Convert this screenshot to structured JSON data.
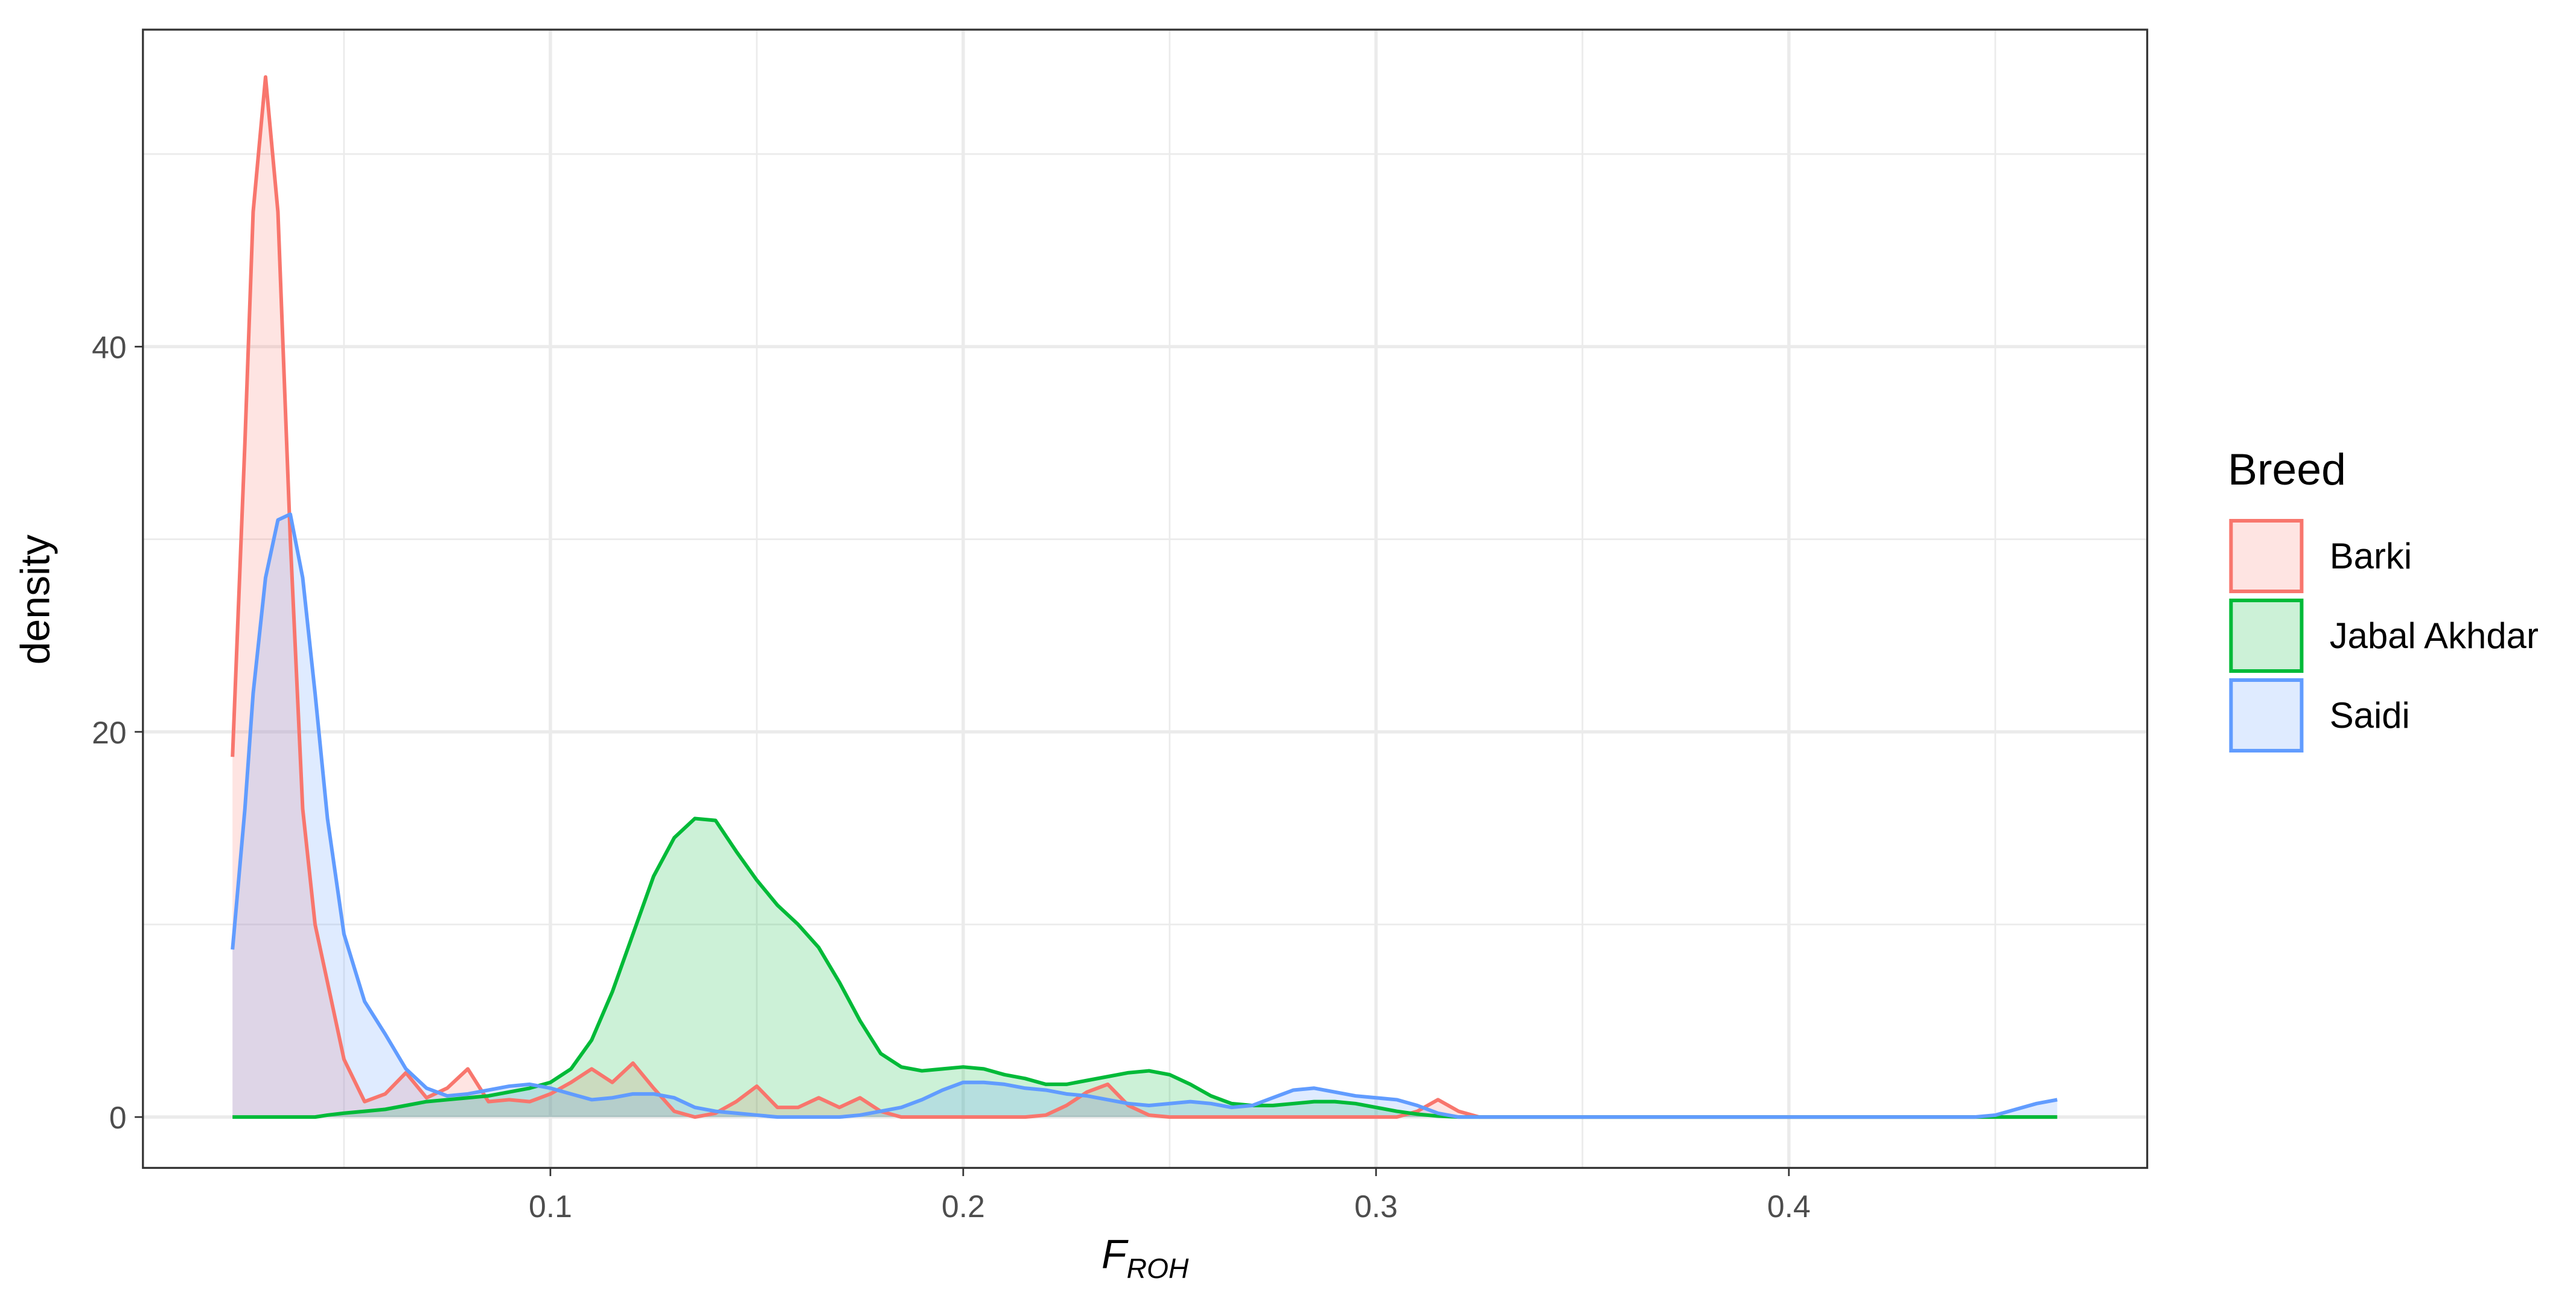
{
  "chart_data": {
    "type": "density",
    "x_label": {
      "main": "F",
      "subscript": "ROH"
    },
    "y_label": "density",
    "legend_title": "Breed",
    "legend_position": "right",
    "grid": true,
    "xlim": [
      0.0013,
      0.4868
    ],
    "ylim": [
      -2.64,
      56.46
    ],
    "xticks": [
      0.1,
      0.2,
      0.3,
      0.4
    ],
    "yticks": [
      0,
      20,
      40
    ],
    "x_minor_grid": [
      0.05,
      0.15,
      0.25,
      0.35,
      0.45
    ],
    "y_minor_grid": [
      10,
      30,
      50
    ],
    "fill_opacity": 0.2,
    "x": [
      0.023,
      0.026,
      0.028,
      0.031,
      0.034,
      0.037,
      0.04,
      0.043,
      0.046,
      0.05,
      0.055,
      0.06,
      0.065,
      0.07,
      0.075,
      0.08,
      0.085,
      0.09,
      0.095,
      0.1,
      0.105,
      0.11,
      0.115,
      0.12,
      0.125,
      0.13,
      0.135,
      0.14,
      0.145,
      0.15,
      0.155,
      0.16,
      0.165,
      0.17,
      0.175,
      0.18,
      0.185,
      0.19,
      0.195,
      0.2,
      0.205,
      0.21,
      0.215,
      0.22,
      0.225,
      0.23,
      0.235,
      0.24,
      0.245,
      0.25,
      0.255,
      0.26,
      0.265,
      0.27,
      0.275,
      0.28,
      0.285,
      0.29,
      0.295,
      0.3,
      0.305,
      0.31,
      0.315,
      0.32,
      0.325,
      0.35,
      0.4,
      0.44,
      0.445,
      0.45,
      0.455,
      0.46,
      0.465
    ],
    "series": [
      {
        "name": "Barki",
        "color": "#F8766D",
        "values": [
          18.7,
          35,
          47,
          54,
          47,
          30,
          16,
          10,
          7,
          3,
          0.8,
          1.2,
          2.3,
          1,
          1.5,
          2.5,
          0.8,
          0.9,
          0.8,
          1.2,
          1.8,
          2.5,
          1.8,
          2.8,
          1.5,
          0.3,
          0,
          0.2,
          0.8,
          1.6,
          0.5,
          0.5,
          1,
          0.5,
          1,
          0.3,
          0,
          0,
          0,
          0,
          0,
          0,
          0,
          0.1,
          0.6,
          1.3,
          1.7,
          0.6,
          0.1,
          0,
          0,
          0,
          0,
          0,
          0,
          0,
          0,
          0,
          0,
          0,
          0,
          0.3,
          0.9,
          0.3,
          0,
          0,
          0,
          0,
          0,
          0,
          0,
          0,
          0
        ]
      },
      {
        "name": "Jabal Akhdar",
        "color": "#00BA38",
        "values": [
          0,
          0,
          0,
          0,
          0,
          0,
          0,
          0,
          0.1,
          0.2,
          0.3,
          0.4,
          0.6,
          0.8,
          0.9,
          1,
          1.1,
          1.3,
          1.5,
          1.8,
          2.5,
          4,
          6.5,
          9.5,
          12.5,
          14.5,
          15.5,
          15.4,
          13.8,
          12.3,
          11,
          10,
          8.8,
          7,
          5,
          3.3,
          2.6,
          2.4,
          2.5,
          2.6,
          2.5,
          2.2,
          2,
          1.7,
          1.7,
          1.9,
          2.1,
          2.3,
          2.4,
          2.2,
          1.7,
          1.1,
          0.7,
          0.6,
          0.6,
          0.7,
          0.8,
          0.8,
          0.7,
          0.5,
          0.3,
          0.15,
          0.05,
          0,
          0,
          0,
          0,
          0,
          0,
          0,
          0,
          0,
          0
        ]
      },
      {
        "name": "Saidi",
        "color": "#619CFF",
        "values": [
          8.7,
          16,
          22,
          28,
          31,
          31.3,
          28,
          22,
          15.5,
          9.5,
          6,
          4.3,
          2.5,
          1.5,
          1.1,
          1.2,
          1.4,
          1.6,
          1.7,
          1.5,
          1.2,
          0.9,
          1,
          1.2,
          1.2,
          1,
          0.5,
          0.3,
          0.2,
          0.1,
          0,
          0,
          0,
          0,
          0.1,
          0.3,
          0.5,
          0.9,
          1.4,
          1.8,
          1.8,
          1.7,
          1.5,
          1.4,
          1.2,
          1.1,
          0.9,
          0.7,
          0.6,
          0.7,
          0.8,
          0.7,
          0.5,
          0.6,
          1,
          1.4,
          1.5,
          1.3,
          1.1,
          1,
          0.9,
          0.6,
          0.2,
          0,
          0,
          0,
          0,
          0,
          0,
          0.1,
          0.4,
          0.7,
          0.9
        ]
      }
    ]
  }
}
